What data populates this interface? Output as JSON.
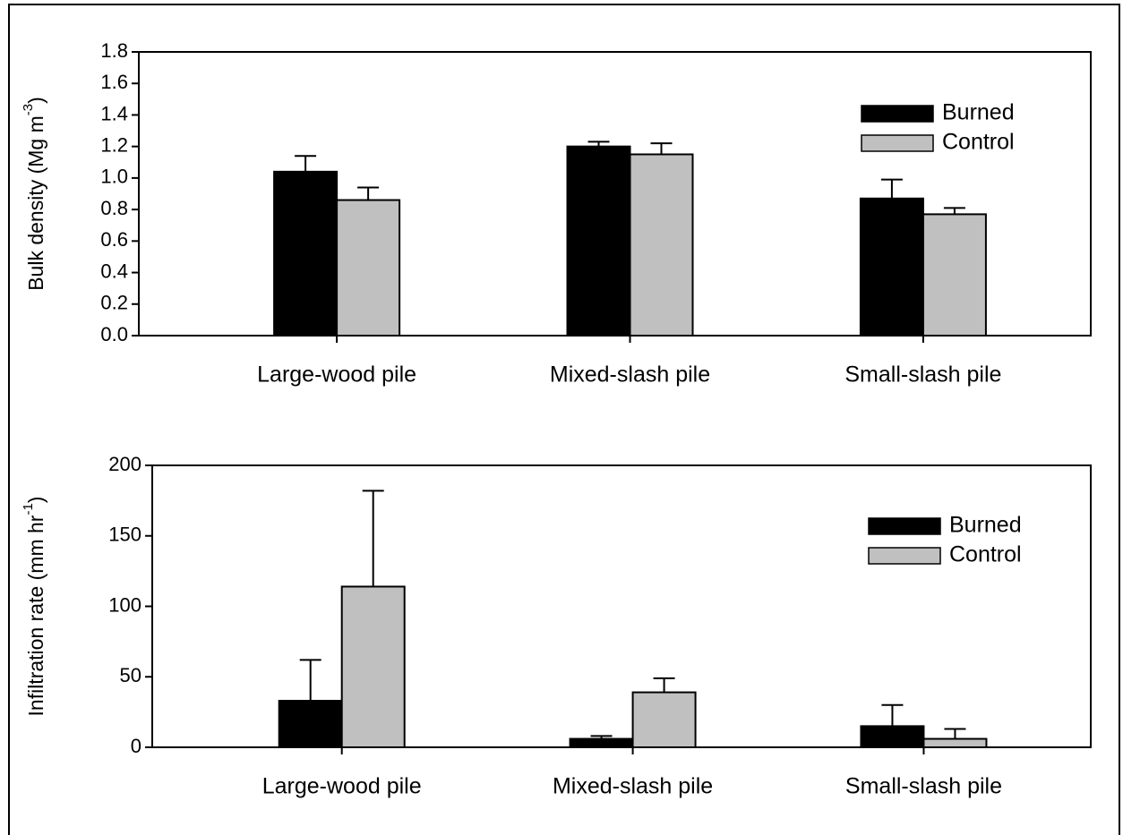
{
  "chart_data": [
    {
      "type": "bar",
      "ylabel": {
        "text": "Bulk density (Mg m",
        "sup": "-3",
        "close": ")"
      },
      "categories": [
        "Large-wood pile",
        "Mixed-slash pile",
        "Small-slash pile"
      ],
      "series": [
        {
          "name": "Burned",
          "color": "#000000",
          "values": [
            1.04,
            1.2,
            0.87
          ],
          "errors": [
            0.1,
            0.03,
            0.12
          ]
        },
        {
          "name": "Control",
          "color": "#c0c0c0",
          "values": [
            0.86,
            1.15,
            0.77
          ],
          "errors": [
            0.08,
            0.07,
            0.04
          ]
        }
      ],
      "ylim": [
        0,
        1.8
      ],
      "yticks": [
        {
          "value": 0,
          "label": "0.0"
        },
        0.2,
        0.4,
        0.6,
        0.8,
        {
          "value": 1,
          "label": "1.0"
        },
        1.2,
        1.4,
        1.6,
        1.8
      ],
      "legend": "upper right"
    },
    {
      "type": "bar",
      "ylabel": {
        "text": "Infiltration rate (mm hr",
        "sup": "-1",
        "close": ")"
      },
      "categories": [
        "Large-wood pile",
        "Mixed-slash pile",
        "Small-slash pile"
      ],
      "series": [
        {
          "name": "Burned",
          "color": "#000000",
          "values": [
            33,
            6,
            15
          ],
          "errors": [
            29,
            2,
            15
          ]
        },
        {
          "name": "Control",
          "color": "#c0c0c0",
          "values": [
            114,
            39,
            6
          ],
          "errors": [
            68,
            10,
            7
          ]
        }
      ],
      "ylim": [
        0,
        200
      ],
      "yticks": [
        0,
        50,
        100,
        150,
        200
      ],
      "legend": "upper right"
    }
  ]
}
